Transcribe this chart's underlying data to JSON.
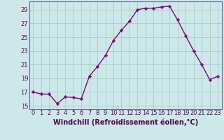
{
  "x": [
    0,
    1,
    2,
    3,
    4,
    5,
    6,
    7,
    8,
    9,
    10,
    11,
    12,
    13,
    14,
    15,
    16,
    17,
    18,
    19,
    20,
    21,
    22,
    23
  ],
  "y": [
    17.0,
    16.7,
    16.7,
    15.3,
    16.3,
    16.2,
    16.0,
    19.3,
    20.7,
    22.3,
    24.5,
    26.0,
    27.3,
    29.0,
    29.2,
    29.2,
    29.4,
    29.5,
    27.5,
    25.2,
    23.0,
    21.0,
    18.8,
    19.3
  ],
  "line_color": "#880088",
  "marker": "D",
  "marker_size": 2.2,
  "bg_color": "#cce8e8",
  "grid_color": "#aacccc",
  "xlabel": "Windchill (Refroidissement éolien,°C)",
  "ylim": [
    14.5,
    30.2
  ],
  "yticks": [
    15,
    17,
    19,
    21,
    23,
    25,
    27,
    29
  ],
  "xticks": [
    0,
    1,
    2,
    3,
    4,
    5,
    6,
    7,
    8,
    9,
    10,
    11,
    12,
    13,
    14,
    15,
    16,
    17,
    18,
    19,
    20,
    21,
    22,
    23
  ],
  "tick_fontsize": 6,
  "xlabel_fontsize": 7,
  "line_width": 1.0,
  "spine_color": "#666699"
}
